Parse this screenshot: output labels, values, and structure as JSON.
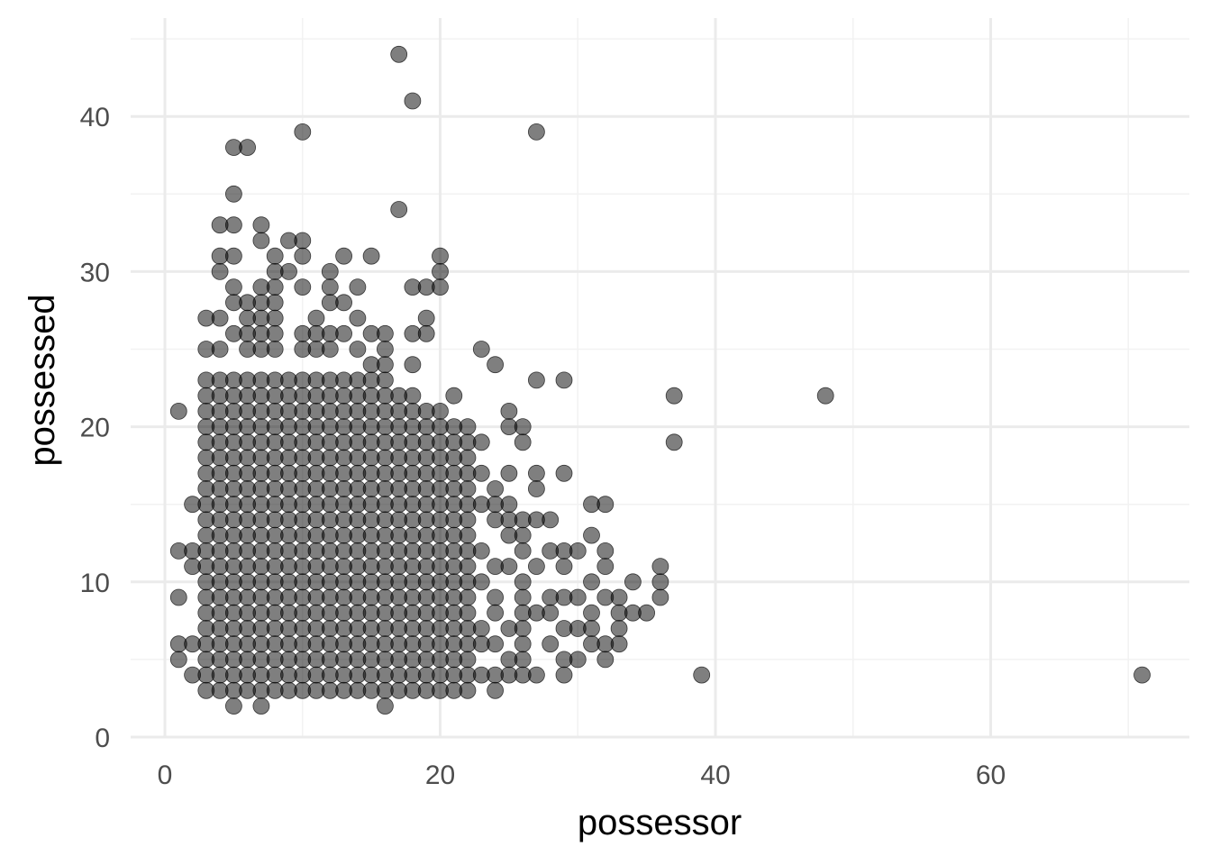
{
  "chart_data": {
    "type": "scatter",
    "title": "",
    "xlabel": "possessor",
    "ylabel": "possessed",
    "xlim": [
      -2.5,
      74
    ],
    "ylim": [
      -0.1,
      45.8
    ],
    "x_ticks": [
      0,
      20,
      40,
      60
    ],
    "y_ticks": [
      0,
      10,
      20,
      30,
      40
    ],
    "x_tick_labels": [
      "0",
      "20",
      "40",
      "60"
    ],
    "y_tick_labels": [
      "0",
      "10",
      "20",
      "30",
      "40"
    ],
    "grid": true,
    "legend": "none",
    "point_color": "#000000",
    "point_alpha": 0.5,
    "dense_region": {
      "x_range": [
        3,
        22
      ],
      "y_range": [
        3,
        23
      ]
    },
    "points": [
      [
        17,
        44
      ],
      [
        18,
        41
      ],
      [
        10,
        39
      ],
      [
        27,
        39
      ],
      [
        5,
        38
      ],
      [
        6,
        38
      ],
      [
        5,
        35
      ],
      [
        17,
        34
      ],
      [
        4,
        33
      ],
      [
        5,
        33
      ],
      [
        7,
        33
      ],
      [
        7,
        32
      ],
      [
        9,
        32
      ],
      [
        10,
        32
      ],
      [
        13,
        31
      ],
      [
        15,
        31
      ],
      [
        20,
        31
      ],
      [
        8,
        31
      ],
      [
        4,
        31
      ],
      [
        5,
        31
      ],
      [
        10,
        31
      ],
      [
        4,
        30
      ],
      [
        9,
        30
      ],
      [
        12,
        30
      ],
      [
        20,
        30
      ],
      [
        8,
        30
      ],
      [
        5,
        29
      ],
      [
        7,
        29
      ],
      [
        8,
        29
      ],
      [
        10,
        29
      ],
      [
        12,
        29
      ],
      [
        14,
        29
      ],
      [
        18,
        29
      ],
      [
        19,
        29
      ],
      [
        20,
        29
      ],
      [
        5,
        28
      ],
      [
        6,
        28
      ],
      [
        7,
        28
      ],
      [
        8,
        28
      ],
      [
        12,
        28
      ],
      [
        13,
        28
      ],
      [
        3,
        27
      ],
      [
        4,
        27
      ],
      [
        6,
        27
      ],
      [
        7,
        27
      ],
      [
        8,
        27
      ],
      [
        11,
        27
      ],
      [
        14,
        27
      ],
      [
        19,
        27
      ],
      [
        5,
        26
      ],
      [
        6,
        26
      ],
      [
        7,
        26
      ],
      [
        8,
        26
      ],
      [
        10,
        26
      ],
      [
        11,
        26
      ],
      [
        12,
        26
      ],
      [
        13,
        26
      ],
      [
        15,
        26
      ],
      [
        16,
        26
      ],
      [
        18,
        26
      ],
      [
        19,
        26
      ],
      [
        3,
        25
      ],
      [
        4,
        25
      ],
      [
        6,
        25
      ],
      [
        7,
        25
      ],
      [
        8,
        25
      ],
      [
        10,
        25
      ],
      [
        11,
        25
      ],
      [
        12,
        25
      ],
      [
        14,
        25
      ],
      [
        16,
        25
      ],
      [
        23,
        25
      ],
      [
        24,
        24
      ],
      [
        15,
        24
      ],
      [
        16,
        24
      ],
      [
        18,
        24
      ],
      [
        21,
        22
      ],
      [
        27,
        23
      ],
      [
        29,
        23
      ],
      [
        37,
        22
      ],
      [
        48,
        22
      ],
      [
        1,
        21
      ],
      [
        19,
        21
      ],
      [
        20,
        21
      ],
      [
        22,
        20
      ],
      [
        25,
        21
      ],
      [
        25,
        20
      ],
      [
        26,
        20
      ],
      [
        23,
        19
      ],
      [
        26,
        19
      ],
      [
        37,
        19
      ],
      [
        21,
        18
      ],
      [
        21,
        17
      ],
      [
        23,
        17
      ],
      [
        25,
        17
      ],
      [
        27,
        17
      ],
      [
        29,
        17
      ],
      [
        20,
        16
      ],
      [
        22,
        16
      ],
      [
        24,
        16
      ],
      [
        27,
        16
      ],
      [
        19,
        15
      ],
      [
        20,
        15
      ],
      [
        23,
        15
      ],
      [
        24,
        15
      ],
      [
        25,
        15
      ],
      [
        31,
        15
      ],
      [
        32,
        15
      ],
      [
        2,
        15
      ],
      [
        21,
        14
      ],
      [
        24,
        14
      ],
      [
        25,
        14
      ],
      [
        26,
        14
      ],
      [
        27,
        14
      ],
      [
        28,
        14
      ],
      [
        19,
        14
      ],
      [
        22,
        13
      ],
      [
        25,
        13
      ],
      [
        26,
        13
      ],
      [
        31,
        13
      ],
      [
        23,
        12
      ],
      [
        26,
        12
      ],
      [
        28,
        12
      ],
      [
        29,
        12
      ],
      [
        30,
        12
      ],
      [
        32,
        12
      ],
      [
        1,
        12
      ],
      [
        2,
        12
      ],
      [
        22,
        11
      ],
      [
        24,
        11
      ],
      [
        25,
        11
      ],
      [
        27,
        11
      ],
      [
        29,
        11
      ],
      [
        32,
        11
      ],
      [
        36,
        11
      ],
      [
        2,
        11
      ],
      [
        21,
        10
      ],
      [
        23,
        10
      ],
      [
        26,
        10
      ],
      [
        31,
        10
      ],
      [
        34,
        10
      ],
      [
        36,
        10
      ],
      [
        22,
        9
      ],
      [
        24,
        9
      ],
      [
        26,
        9
      ],
      [
        28,
        9
      ],
      [
        29,
        9
      ],
      [
        30,
        9
      ],
      [
        32,
        9
      ],
      [
        33,
        9
      ],
      [
        36,
        9
      ],
      [
        1,
        9
      ],
      [
        22,
        8
      ],
      [
        24,
        8
      ],
      [
        26,
        8
      ],
      [
        27,
        8
      ],
      [
        28,
        8
      ],
      [
        31,
        8
      ],
      [
        33,
        8
      ],
      [
        34,
        8
      ],
      [
        35,
        8
      ],
      [
        23,
        7
      ],
      [
        25,
        7
      ],
      [
        26,
        7
      ],
      [
        29,
        7
      ],
      [
        30,
        7
      ],
      [
        31,
        7
      ],
      [
        33,
        7
      ],
      [
        22,
        6
      ],
      [
        23,
        6
      ],
      [
        24,
        6
      ],
      [
        26,
        6
      ],
      [
        28,
        6
      ],
      [
        31,
        6
      ],
      [
        32,
        6
      ],
      [
        33,
        6
      ],
      [
        1,
        6
      ],
      [
        2,
        6
      ],
      [
        21,
        5
      ],
      [
        22,
        5
      ],
      [
        25,
        5
      ],
      [
        26,
        5
      ],
      [
        29,
        5
      ],
      [
        30,
        5
      ],
      [
        32,
        5
      ],
      [
        1,
        5
      ],
      [
        22,
        4
      ],
      [
        23,
        4
      ],
      [
        24,
        4
      ],
      [
        25,
        4
      ],
      [
        26,
        4
      ],
      [
        27,
        4
      ],
      [
        29,
        4
      ],
      [
        39,
        4
      ],
      [
        71,
        4
      ],
      [
        2,
        4
      ],
      [
        17,
        3
      ],
      [
        18,
        3
      ],
      [
        19,
        3
      ],
      [
        20,
        3
      ],
      [
        21,
        3
      ],
      [
        24,
        3
      ],
      [
        5,
        2
      ],
      [
        7,
        2
      ],
      [
        16,
        2
      ]
    ]
  }
}
